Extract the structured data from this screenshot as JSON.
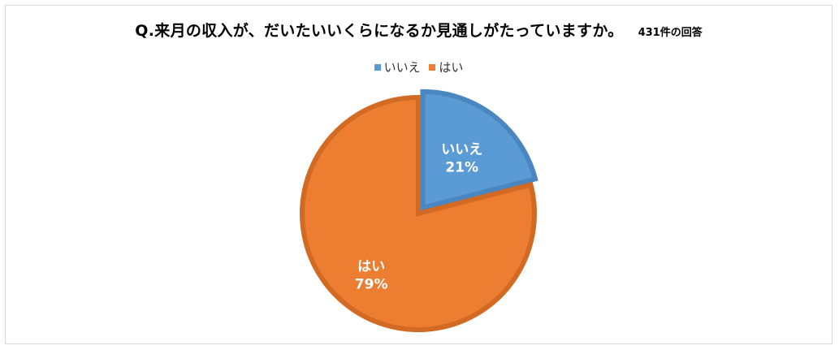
{
  "chart_data": {
    "type": "pie",
    "title": "Q.来月の収入が、だいたいいくらになるか見通しがたっていますか。",
    "note": "431件の回答",
    "categories": [
      "いいえ",
      "はい"
    ],
    "values": [
      21,
      79
    ],
    "percent_labels": [
      "21%",
      "79%"
    ],
    "colors": [
      "#5b9bd5",
      "#ed7d31"
    ],
    "border_colors": [
      "#4a86c0",
      "#d26a24"
    ],
    "legend_position": "top",
    "exploded_slice": "いいえ"
  }
}
